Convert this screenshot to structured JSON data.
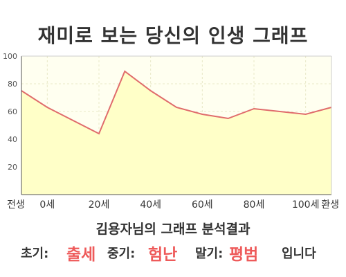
{
  "title": "재미로 보는 당신의 인생 그래프",
  "subtitle": "김용자님의 그래프 분석결과",
  "result": {
    "early_label": "초기:",
    "early_value": "출세",
    "mid_label": "중기:",
    "mid_value": "험난",
    "late_label": "말기:",
    "late_value": "평범",
    "suffix": "입니다"
  },
  "colors": {
    "line": "#e06c6c",
    "fill": "#ffffc8",
    "plot_bg": "#fffff0",
    "grid": "#e8e8c8",
    "highlight": "#ee5a5a",
    "text": "#333333"
  },
  "chart_data": {
    "type": "area",
    "title": "",
    "xlabel": "",
    "ylabel": "",
    "ylim": [
      0,
      100
    ],
    "yticks": [
      20,
      40,
      60,
      80,
      100
    ],
    "xlim": [
      -10,
      110
    ],
    "xticks": [
      {
        "x": -10,
        "label": "전생"
      },
      {
        "x": 0,
        "label": "0세"
      },
      {
        "x": 20,
        "label": "20세"
      },
      {
        "x": 40,
        "label": "40세"
      },
      {
        "x": 60,
        "label": "60세"
      },
      {
        "x": 80,
        "label": "80세"
      },
      {
        "x": 100,
        "label": "100세"
      },
      {
        "x": 110,
        "label": "환생"
      }
    ],
    "grid": true,
    "series": [
      {
        "x": [
          -10,
          0,
          20,
          30,
          40,
          50,
          60,
          70,
          80,
          90,
          100,
          110
        ],
        "y": [
          75,
          63,
          44,
          89,
          75,
          63,
          58,
          55,
          62,
          60,
          58,
          63
        ]
      }
    ]
  }
}
